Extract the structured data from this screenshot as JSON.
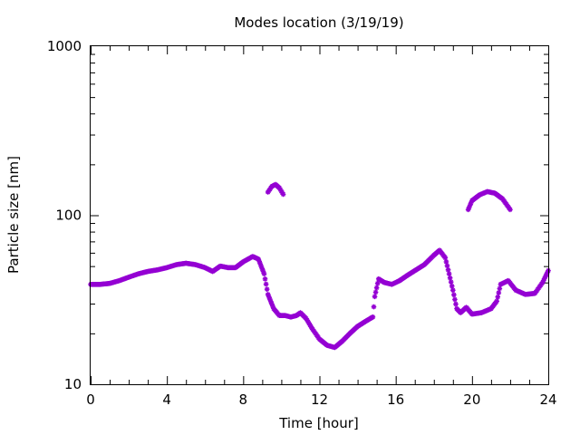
{
  "chart_data": {
    "type": "scatter",
    "title": "Modes location (3/19/19)",
    "xlabel": "Time [hour]",
    "ylabel": "Particle size [nm]",
    "xlim": [
      0,
      24
    ],
    "ylim": [
      10,
      1000
    ],
    "y_scale": "log",
    "x_ticks": [
      0,
      4,
      8,
      12,
      16,
      20,
      24
    ],
    "x_tick_labels": [
      "0",
      "4",
      "8",
      "12",
      "16",
      "20",
      "24"
    ],
    "y_ticks": [
      10,
      100,
      1000
    ],
    "y_tick_labels": [
      "10",
      "100",
      "1000"
    ],
    "marker_color": "#9400d3",
    "grid": false,
    "legend": "none",
    "series": [
      {
        "name": "",
        "control": [
          [
            0.0,
            39
          ],
          [
            0.5,
            39
          ],
          [
            1.0,
            39.5
          ],
          [
            1.5,
            41
          ],
          [
            2.0,
            43
          ],
          [
            2.5,
            45
          ],
          [
            3.0,
            46.5
          ],
          [
            3.5,
            47.5
          ],
          [
            4.0,
            49
          ],
          [
            4.5,
            51
          ],
          [
            5.0,
            52
          ],
          [
            5.5,
            51
          ],
          [
            6.0,
            49
          ],
          [
            6.4,
            46.5
          ],
          [
            6.8,
            50
          ],
          [
            7.2,
            49
          ],
          [
            7.6,
            49
          ],
          [
            8.0,
            53
          ],
          [
            8.5,
            57
          ],
          [
            8.8,
            55
          ],
          [
            9.1,
            45
          ],
          [
            9.3,
            34
          ],
          [
            9.6,
            28
          ],
          [
            9.9,
            25.5
          ],
          [
            10.2,
            25.5
          ],
          [
            10.5,
            25
          ],
          [
            10.8,
            25.5
          ],
          [
            11.0,
            26.5
          ],
          [
            11.3,
            24.5
          ],
          [
            11.6,
            21.5
          ],
          [
            12.0,
            18.5
          ],
          [
            12.4,
            17
          ],
          [
            12.8,
            16.5
          ],
          [
            13.2,
            18
          ],
          [
            13.6,
            20
          ],
          [
            14.0,
            22
          ],
          [
            14.4,
            23.5
          ],
          [
            14.8,
            25
          ],
          [
            14.9,
            33
          ],
          [
            15.1,
            42
          ],
          [
            15.4,
            40
          ],
          [
            15.8,
            39
          ],
          [
            16.2,
            41
          ],
          [
            16.6,
            44
          ],
          [
            17.0,
            47
          ],
          [
            17.5,
            51
          ],
          [
            18.0,
            58
          ],
          [
            18.3,
            62
          ],
          [
            18.6,
            56
          ],
          [
            18.8,
            45
          ],
          [
            19.0,
            36
          ],
          [
            19.2,
            28
          ],
          [
            19.4,
            26.5
          ],
          [
            19.7,
            28.5
          ],
          [
            20.0,
            26
          ],
          [
            20.5,
            26.5
          ],
          [
            21.0,
            28
          ],
          [
            21.3,
            31
          ],
          [
            21.5,
            39
          ],
          [
            21.9,
            41
          ],
          [
            22.3,
            36
          ],
          [
            22.8,
            34
          ],
          [
            23.3,
            34.5
          ],
          [
            23.7,
            40
          ],
          [
            24.0,
            47
          ]
        ]
      },
      {
        "name": "",
        "control": [
          [
            9.3,
            137
          ],
          [
            9.5,
            148
          ],
          [
            9.7,
            152
          ],
          [
            9.9,
            145
          ],
          [
            10.1,
            133
          ]
        ]
      },
      {
        "name": "",
        "control": [
          [
            19.8,
            108
          ],
          [
            20.0,
            122
          ],
          [
            20.4,
            132
          ],
          [
            20.8,
            138
          ],
          [
            21.2,
            135
          ],
          [
            21.6,
            125
          ],
          [
            22.0,
            108
          ]
        ]
      }
    ]
  }
}
